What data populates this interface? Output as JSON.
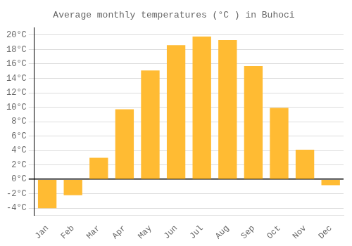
{
  "chart_data": {
    "type": "bar",
    "title": "Average monthly temperatures (°C ) in Buhoci",
    "categories": [
      "Jan",
      "Feb",
      "Mar",
      "Apr",
      "May",
      "Jun",
      "Jul",
      "Aug",
      "Sep",
      "Oct",
      "Nov",
      "Dec"
    ],
    "values": [
      -4.0,
      -2.2,
      3.0,
      9.7,
      15.1,
      18.6,
      19.8,
      19.3,
      15.7,
      9.9,
      4.1,
      -0.8
    ],
    "color": "#FFBB33",
    "ylim": [
      -5,
      21
    ],
    "yticks": [
      {
        "value": -4,
        "label": "-4°C"
      },
      {
        "value": -2,
        "label": "-2°C"
      },
      {
        "value": 0,
        "label": "0°C"
      },
      {
        "value": 2,
        "label": "2°C"
      },
      {
        "value": 4,
        "label": "4°C"
      },
      {
        "value": 6,
        "label": "6°C"
      },
      {
        "value": 8,
        "label": "8°C"
      },
      {
        "value": 10,
        "label": "10°C"
      },
      {
        "value": 12,
        "label": "12°C"
      },
      {
        "value": 14,
        "label": "14°C"
      },
      {
        "value": 16,
        "label": "16°C"
      },
      {
        "value": 18,
        "label": "18°C"
      },
      {
        "value": 20,
        "label": "20°C"
      }
    ],
    "grid": true
  }
}
